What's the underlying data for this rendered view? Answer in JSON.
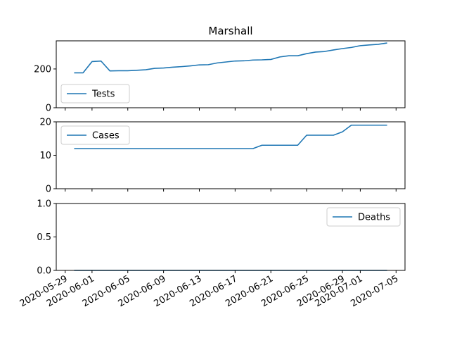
{
  "chart_data": {
    "type": "line",
    "title": "Marshall",
    "series_color": "#1f77b4",
    "x_ticks": [
      "2020-05-29",
      "2020-06-01",
      "2020-06-05",
      "2020-06-09",
      "2020-06-13",
      "2020-06-17",
      "2020-06-21",
      "2020-06-25",
      "2020-06-29",
      "2020-07-01",
      "2020-07-05"
    ],
    "xlim": [
      "2020-05-28",
      "2020-07-06"
    ],
    "x": [
      "2020-05-30",
      "2020-05-31",
      "2020-06-01",
      "2020-06-02",
      "2020-06-03",
      "2020-06-04",
      "2020-06-05",
      "2020-06-06",
      "2020-06-07",
      "2020-06-08",
      "2020-06-09",
      "2020-06-10",
      "2020-06-11",
      "2020-06-12",
      "2020-06-13",
      "2020-06-14",
      "2020-06-15",
      "2020-06-16",
      "2020-06-17",
      "2020-06-18",
      "2020-06-19",
      "2020-06-20",
      "2020-06-21",
      "2020-06-22",
      "2020-06-23",
      "2020-06-24",
      "2020-06-25",
      "2020-06-26",
      "2020-06-27",
      "2020-06-28",
      "2020-06-29",
      "2020-06-30",
      "2020-07-01",
      "2020-07-02",
      "2020-07-03",
      "2020-07-04"
    ],
    "panels": [
      {
        "name": "Tests",
        "legend": "lower-left",
        "ylim": [
          0,
          345
        ],
        "y_ticks": [
          0,
          200
        ],
        "values": [
          180,
          180,
          238,
          241,
          190,
          191,
          191,
          193,
          196,
          203,
          205,
          209,
          212,
          216,
          221,
          222,
          231,
          236,
          241,
          242,
          246,
          247,
          249,
          262,
          268,
          268,
          279,
          287,
          290,
          298,
          305,
          311,
          320,
          324,
          327,
          334
        ]
      },
      {
        "name": "Cases",
        "legend": "upper-left",
        "ylim": [
          0,
          20
        ],
        "y_ticks": [
          0,
          10,
          20
        ],
        "values": [
          12,
          12,
          12,
          12,
          12,
          12,
          12,
          12,
          12,
          12,
          12,
          12,
          12,
          12,
          12,
          12,
          12,
          12,
          12,
          12,
          12,
          13,
          13,
          13,
          13,
          13,
          16,
          16,
          16,
          16,
          17,
          19,
          19,
          19,
          19,
          19
        ]
      },
      {
        "name": "Deaths",
        "legend": "upper-right",
        "ylim": [
          0,
          1.0
        ],
        "y_ticks": [
          0.0,
          0.5,
          1.0
        ],
        "values": [
          0,
          0,
          0,
          0,
          0,
          0,
          0,
          0,
          0,
          0,
          0,
          0,
          0,
          0,
          0,
          0,
          0,
          0,
          0,
          0,
          0,
          0,
          0,
          0,
          0,
          0,
          0,
          0,
          0,
          0,
          0,
          0,
          0,
          0,
          0,
          0
        ]
      }
    ]
  }
}
